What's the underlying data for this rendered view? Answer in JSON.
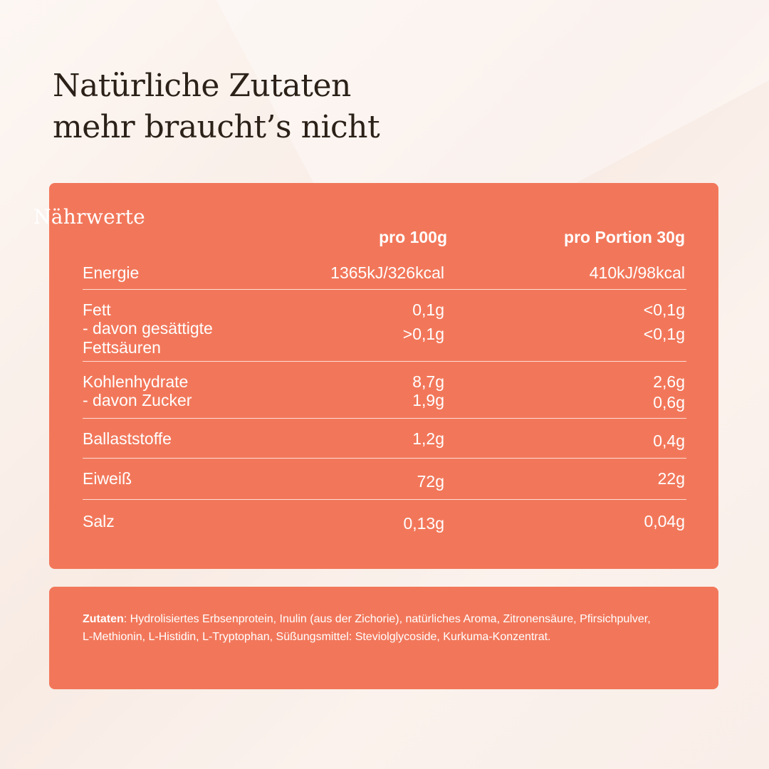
{
  "headline": {
    "line1": "Natürliche Zutaten",
    "line2": "mehr braucht’s nicht"
  },
  "nutrition": {
    "title": "Nährwerte",
    "col_100g": "pro 100g",
    "col_portion": "pro Portion 30g",
    "rows": [
      {
        "label": "Energie",
        "v100": "1365kJ/326kcal",
        "vportion": "410kJ/98kcal"
      },
      {
        "label": "Fett",
        "v100": "0,1g",
        "vportion": "<0,1g"
      },
      {
        "label": "- davon gesättigte",
        "v100": ">0,1g",
        "vportion": "<0,1g"
      },
      {
        "label": "Fettsäuren"
      },
      {
        "label": "Kohlenhydrate",
        "v100": "8,7g",
        "vportion": "2,6g"
      },
      {
        "label": "- davon Zucker",
        "v100": "1,9g",
        "vportion": "0,6g"
      },
      {
        "label": "Ballaststoffe",
        "v100": "1,2g",
        "vportion": "0,4g"
      },
      {
        "label": "Eiweiß",
        "v100": "72g",
        "vportion": "22g"
      },
      {
        "label": "Salz",
        "v100": "0,13g",
        "vportion": "0,04g"
      }
    ]
  },
  "ingredients": {
    "label": "Zutaten",
    "text": ": Hydrolisiertes Erbsenprotein, Inulin (aus der Zichorie), natürliches Aroma, Zitronensäure, Pfirsichpulver, L-Methionin, L-Histidin, L-Tryptophan, Süßungsmittel: Steviolglycoside, Kurkuma-Konzentrat."
  },
  "colors": {
    "card": "#f2775a",
    "background": "#fbf3ee",
    "headline": "#2b2118"
  }
}
